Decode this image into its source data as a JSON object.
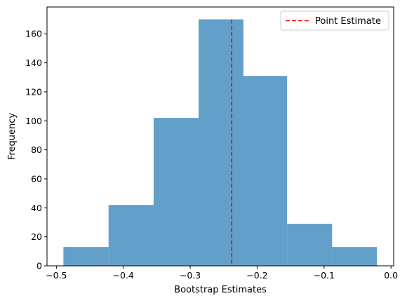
{
  "chart_data": {
    "type": "bar",
    "subtype": "histogram",
    "xlabel": "Bootstrap Estimates",
    "ylabel": "Frequency",
    "xlim": [
      -0.514,
      0.004
    ],
    "ylim": [
      0,
      178.5
    ],
    "xticks": [
      -0.5,
      -0.4,
      -0.3,
      -0.2,
      -0.1,
      0.0
    ],
    "xtick_labels": [
      "−0.5",
      "−0.4",
      "−0.3",
      "−0.2",
      "−0.1",
      "0.0"
    ],
    "yticks": [
      0,
      20,
      40,
      60,
      80,
      100,
      120,
      140,
      160
    ],
    "ytick_labels": [
      "0",
      "20",
      "40",
      "60",
      "80",
      "100",
      "120",
      "140",
      "160"
    ],
    "bins": [
      {
        "left": -0.4895,
        "right": -0.422,
        "count": 13
      },
      {
        "left": -0.422,
        "right": -0.3547,
        "count": 42
      },
      {
        "left": -0.3547,
        "right": -0.2875,
        "count": 102
      },
      {
        "left": -0.2875,
        "right": -0.2205,
        "count": 170
      },
      {
        "left": -0.2205,
        "right": -0.1552,
        "count": 131
      },
      {
        "left": -0.1552,
        "right": -0.088,
        "count": 29
      },
      {
        "left": -0.088,
        "right": -0.021,
        "count": 13
      }
    ],
    "bar_color": "#1f77b4",
    "bar_opacity": 0.7,
    "point_estimate": {
      "name": "Point Estimate",
      "x": -0.238,
      "color": "#ff0000",
      "style": "dashed"
    },
    "legend": {
      "position": "top-right",
      "entries": [
        "Point Estimate"
      ]
    },
    "grid": false
  }
}
